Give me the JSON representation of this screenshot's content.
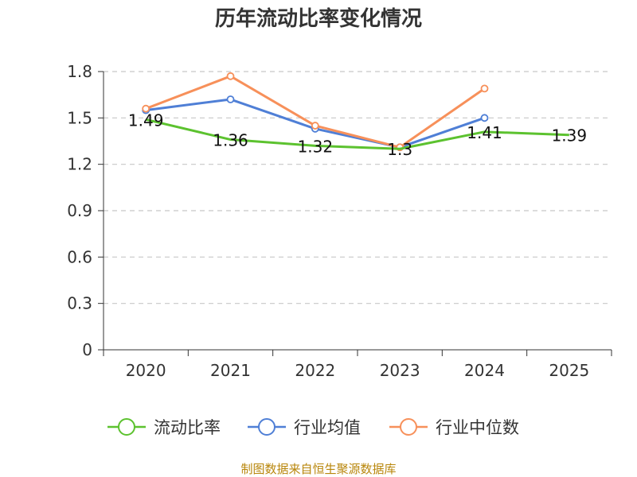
{
  "chart_data": {
    "type": "line",
    "title": "历年流动比率变化情况",
    "categories": [
      "2020",
      "2021",
      "2022",
      "2023",
      "2024",
      "2025"
    ],
    "ylim": [
      0,
      1.8
    ],
    "yticks": [
      "0",
      "0.3",
      "0.6",
      "0.9",
      "1.2",
      "1.5",
      "1.8"
    ],
    "grid": true,
    "legend_position": "bottom",
    "series": [
      {
        "name": "流动比率",
        "color": "#5cc22f",
        "values": [
          1.49,
          1.36,
          1.32,
          1.3,
          1.41,
          1.39
        ],
        "labels": [
          "1.49",
          "1.36",
          "1.32",
          "1.3",
          "1.41",
          "1.39"
        ],
        "show_markers": false
      },
      {
        "name": "行业均值",
        "color": "#4f7fd6",
        "values": [
          1.55,
          1.62,
          1.43,
          1.31,
          1.5,
          null
        ],
        "show_markers": true
      },
      {
        "name": "行业中位数",
        "color": "#f7905a",
        "values": [
          1.56,
          1.77,
          1.45,
          1.31,
          1.69,
          null
        ],
        "show_markers": true
      }
    ],
    "source": "制图数据来自恒生聚源数据库"
  }
}
